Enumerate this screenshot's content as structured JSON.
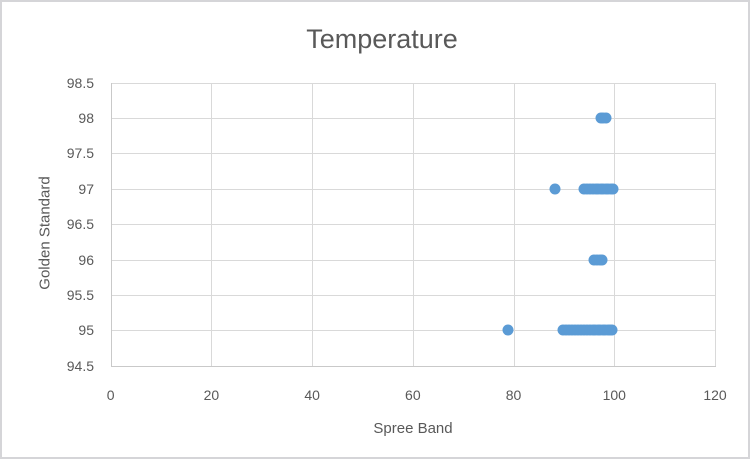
{
  "chart": {
    "title": "Temperature",
    "xlabel": "Spree Band",
    "ylabel": "Golden Standard"
  },
  "chart_data": {
    "type": "scatter",
    "title": "Temperature",
    "xlabel": "Spree Band",
    "ylabel": "Golden Standard",
    "xlim": [
      0,
      120
    ],
    "ylim": [
      94.5,
      98.5
    ],
    "xticks": [
      0,
      20,
      40,
      60,
      80,
      100,
      120
    ],
    "yticks": [
      98.5,
      98,
      97.5,
      97,
      96.5,
      96,
      95.5,
      95,
      94.5
    ],
    "grid": true,
    "legend": false,
    "marker_color": "#5b9bd5",
    "gridline_color": "#d9d9d9",
    "axis_line_color": "#c9c9c9",
    "text_color": "#595959",
    "points": [
      [
        97.2,
        98
      ],
      [
        97.6,
        98
      ],
      [
        98.1,
        98
      ],
      [
        88.0,
        97
      ],
      [
        93.8,
        97
      ],
      [
        94.4,
        97
      ],
      [
        95.0,
        97
      ],
      [
        95.6,
        97
      ],
      [
        96.1,
        97
      ],
      [
        96.6,
        97
      ],
      [
        97.1,
        97
      ],
      [
        97.6,
        97
      ],
      [
        98.1,
        97
      ],
      [
        98.6,
        97
      ],
      [
        99.1,
        97
      ],
      [
        99.6,
        97
      ],
      [
        95.7,
        96
      ],
      [
        96.4,
        96
      ],
      [
        97.0,
        96
      ],
      [
        97.4,
        96
      ],
      [
        78.7,
        95
      ],
      [
        89.6,
        95
      ],
      [
        90.2,
        95
      ],
      [
        90.8,
        95
      ],
      [
        91.4,
        95
      ],
      [
        92.0,
        95
      ],
      [
        92.6,
        95
      ],
      [
        93.2,
        95
      ],
      [
        93.8,
        95
      ],
      [
        94.4,
        95
      ],
      [
        95.0,
        95
      ],
      [
        95.5,
        95
      ],
      [
        96.0,
        95
      ],
      [
        96.5,
        95
      ],
      [
        97.0,
        95
      ],
      [
        97.5,
        95
      ],
      [
        98.0,
        95
      ],
      [
        98.5,
        95
      ],
      [
        99.0,
        95
      ],
      [
        99.4,
        95
      ]
    ]
  }
}
